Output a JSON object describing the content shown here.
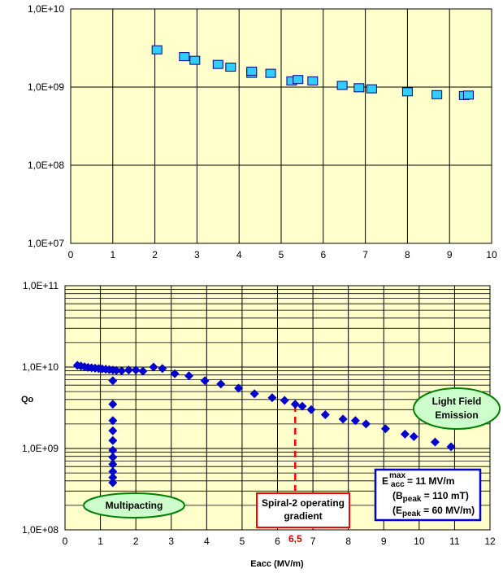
{
  "colors": {
    "plot_bg": "#ffffcc",
    "grid": "#000000",
    "square_fill": "#33ccff",
    "square_edge": "#000080",
    "diamond": "#0000cc",
    "bubble_fill": "#ccffcc",
    "bubble_edge": "#008000",
    "red_line": "#ff0000",
    "red_label": "#cc0000",
    "spiral_box_edge": "#ff0000",
    "spec_box_edge": "#0000cc"
  },
  "chart_data": [
    {
      "type": "scatter",
      "marker": "square",
      "scale_y": "log",
      "xlim": [
        0,
        10
      ],
      "ylim": [
        10000000,
        10000000000
      ],
      "x_ticks": [
        "0",
        "1",
        "2",
        "3",
        "4",
        "5",
        "6",
        "7",
        "8",
        "9",
        "10"
      ],
      "y_ticks": [
        "1,0E+07",
        "1,0E+08",
        "1,0E+09",
        "1,0E+10"
      ],
      "grid": true,
      "series": [
        {
          "x": [
            2.05,
            2.7,
            2.95,
            3.5,
            3.8,
            4.3,
            4.3,
            4.75,
            5.25,
            5.4,
            5.75,
            6.45,
            6.85,
            7.15,
            8.0,
            8.7,
            9.35,
            9.45
          ],
          "y": [
            3000000000,
            2450000000,
            2200000000,
            1950000000,
            1800000000,
            1500000000,
            1600000000,
            1500000000,
            1200000000,
            1250000000,
            1200000000,
            1050000000,
            980000000,
            950000000,
            870000000,
            800000000,
            780000000,
            790000000
          ]
        }
      ]
    },
    {
      "type": "scatter",
      "marker": "diamond",
      "scale_y": "log",
      "xlim": [
        0,
        12
      ],
      "ylim": [
        100000000,
        100000000000
      ],
      "x_ticks": [
        "0",
        "1",
        "2",
        "3",
        "4",
        "5",
        "6",
        "7",
        "8",
        "9",
        "10",
        "11",
        "12"
      ],
      "y_ticks": [
        "1,0E+08",
        "1,0E+09",
        "1,0E+10",
        "1,0E+11"
      ],
      "xlabel": "Eacc (MV/m)",
      "ylabel": "Qo",
      "grid": true,
      "series": [
        {
          "x": [
            0.35,
            0.45,
            0.55,
            0.65,
            0.75,
            0.85,
            0.95,
            1.05,
            1.15,
            1.25,
            1.35,
            1.45,
            1.6,
            1.8,
            2.0,
            2.2,
            2.5,
            2.75,
            3.1,
            3.5,
            3.95,
            4.4,
            4.9,
            5.35,
            5.85,
            6.2,
            6.5,
            6.7,
            6.95,
            7.35,
            7.85,
            8.2,
            8.5,
            9.05,
            9.6,
            9.85,
            10.45,
            10.9
          ],
          "y": [
            10500000000,
            10300000000,
            10100000000,
            9900000000,
            9800000000,
            9700000000,
            9600000000,
            9500000000,
            9400000000,
            9300000000,
            9200000000,
            9100000000,
            9000000000,
            9200000000,
            9200000000,
            8900000000,
            10000000000,
            9600000000,
            8300000000,
            7800000000,
            6800000000,
            6200000000,
            5500000000,
            4700000000,
            4200000000,
            3900000000,
            3500000000,
            3300000000,
            3000000000,
            2600000000,
            2300000000,
            2200000000,
            2000000000,
            1750000000,
            1500000000,
            1400000000,
            1200000000,
            1050000000
          ]
        },
        {
          "x": [
            1.35,
            1.35,
            1.35,
            1.35,
            1.35,
            1.35,
            1.35,
            1.35,
            1.35,
            1.35,
            1.35
          ],
          "y": [
            6800000000,
            3500000000,
            2200000000,
            1650000000,
            1250000000,
            950000000,
            780000000,
            640000000,
            520000000,
            440000000,
            380000000
          ]
        }
      ],
      "annotations": {
        "multipacting": "Multipacting",
        "light_fe_line1": "Light Field",
        "light_fe_line2": "Emission",
        "spiral_line1": "Spiral-2 operating",
        "spiral_line2": "gradient",
        "spiral_value": "6,5",
        "spiral_x": 6.5,
        "spec_e_main": "E",
        "spec_e_sub": "acc",
        "spec_e_sup": "max",
        "spec_e_val": " = 11 MV/m",
        "spec_b_open": "(B",
        "spec_b_sub": "peak",
        "spec_b_val": " = 110 mT)",
        "spec_ep_open": "(E",
        "spec_ep_sub": "peak",
        "spec_ep_val": " = 60 MV/m)"
      }
    }
  ]
}
